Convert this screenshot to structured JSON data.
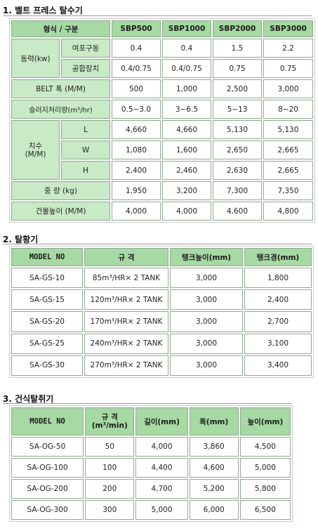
{
  "sections": [
    {
      "title": "1. 벨트 프레스 탈수기"
    },
    {
      "title": "2. 탈황기"
    },
    {
      "title": "3. 건식탈취기"
    }
  ],
  "belt_press": {
    "header": {
      "type_label": "형식 / 구분",
      "models": [
        "SBP500",
        "SBP1000",
        "SBP2000",
        "SBP3000"
      ]
    },
    "power": {
      "label": "동력(kw)",
      "rows": [
        {
          "label": "여포구동",
          "values": [
            "0.4",
            "0.4",
            "1.5",
            "2.2"
          ]
        },
        {
          "label": "공합장치",
          "values": [
            "0.4/0.75",
            "0.4/0.75",
            "0.75",
            "0.75"
          ]
        }
      ]
    },
    "belt_width": {
      "label": "BELT 폭 (M/M)",
      "values": [
        "500",
        "1,000",
        "2,500",
        "3,000"
      ]
    },
    "sludge": {
      "label": "슬러지처리량(m³/hr)",
      "values": [
        "0.5~3.0",
        "3~6.5",
        "5~13",
        "8~20"
      ]
    },
    "dims": {
      "label_line1": "치수",
      "label_line2": "(M/M)",
      "rows": [
        {
          "label": "L",
          "values": [
            "4,660",
            "4,660",
            "5,130",
            "5,130"
          ]
        },
        {
          "label": "W",
          "values": [
            "1,080",
            "1,600",
            "2,650",
            "2,665"
          ]
        },
        {
          "label": "H",
          "values": [
            "2,400",
            "2,460",
            "2,630",
            "2,665"
          ]
        }
      ]
    },
    "weight": {
      "label": "중 량 (kg)",
      "values": [
        "1,950",
        "3,200",
        "7,300",
        "7,350"
      ]
    },
    "building_height": {
      "label": "건물높이 (M/M)",
      "values": [
        "4,000",
        "4,000",
        "4,600",
        "4,800"
      ]
    }
  },
  "desulfurizer": {
    "headers": [
      "MODEL NO",
      "규 격",
      "탱크높이(mm)",
      "탱크경(mm)"
    ],
    "rows": [
      {
        "model": "SA-GS-10",
        "spec": "85m³/HR× 2 TANK",
        "height": "3,000",
        "dia": "1,800"
      },
      {
        "model": "SA-GS-15",
        "spec": "120m³/HR× 2 TANK",
        "height": "3,000",
        "dia": "2,400"
      },
      {
        "model": "SA-GS-20",
        "spec": "170m³/HR× 2 TANK",
        "height": "3,000",
        "dia": "2,700"
      },
      {
        "model": "SA-GS-25",
        "spec": "240m³/HR× 2 TANK",
        "height": "3,000",
        "dia": "3,100"
      },
      {
        "model": "SA-GS-30",
        "spec": "270m³/HR× 2 TANK",
        "height": "3,000",
        "dia": "3,400"
      }
    ]
  },
  "deodorizer": {
    "headers": {
      "model": "MODEL NO",
      "spec_line1": "규 격",
      "spec_line2": "(m³/min)",
      "length": "길이(mm)",
      "width": "폭(mm)",
      "height": "높이(mm)"
    },
    "rows": [
      {
        "model": "SA-OG-50",
        "spec": "50",
        "length": "4,000",
        "width": "3,860",
        "height": "4,500"
      },
      {
        "model": "SA-OG-100",
        "spec": "100",
        "length": "4,400",
        "width": "4,600",
        "height": "5,000"
      },
      {
        "model": "SA-OG-200",
        "spec": "200",
        "length": "4,700",
        "width": "5,200",
        "height": "5,800"
      },
      {
        "model": "SA-OG-300",
        "spec": "300",
        "length": "5,000",
        "width": "6,000",
        "height": "6,500"
      }
    ]
  }
}
